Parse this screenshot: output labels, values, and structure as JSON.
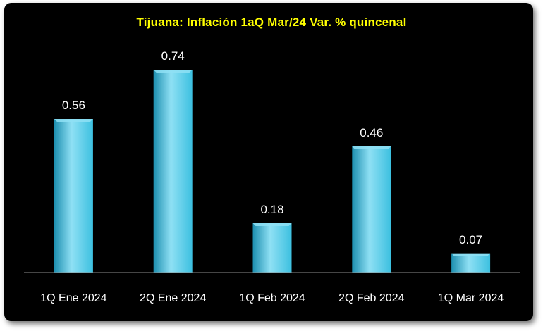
{
  "chart_data": {
    "type": "bar",
    "title": "Tijuana: Inflación 1aQ Mar/24 Var. % quincenal",
    "categories": [
      "1Q Ene 2024",
      "2Q Ene 2024",
      "1Q Feb 2024",
      "2Q Feb 2024",
      "1Q Mar 2024"
    ],
    "values": [
      0.56,
      0.74,
      0.18,
      0.46,
      0.07
    ],
    "data_labels": [
      "0.56",
      "0.74",
      "0.18",
      "0.46",
      "0.07"
    ],
    "xlabel": "",
    "ylabel": "",
    "ylim": [
      0,
      0.74
    ],
    "grid": false,
    "legend": "none",
    "colors": {
      "background": "#000000",
      "bar": "#3cc0e0",
      "bar_highlight": "#8fe0f4",
      "bar_shadow": "#1d8fb0",
      "title": "#ffff00",
      "text": "#ffffff",
      "axis": "#8c8c8c"
    }
  }
}
